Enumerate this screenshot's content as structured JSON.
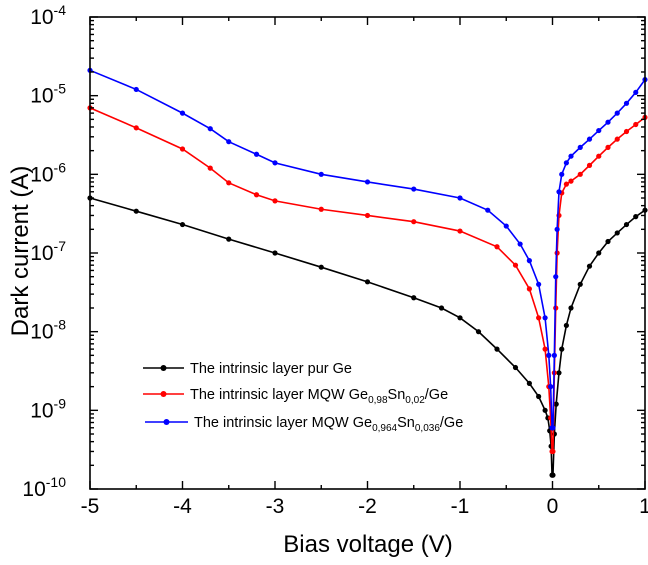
{
  "chart_data": {
    "type": "line",
    "title": "",
    "xlabel": "Bias voltage (V)",
    "ylabel": "Dark current (A)",
    "xlim": [
      -5,
      1
    ],
    "ylim": [
      1e-10,
      0.0001
    ],
    "yscale": "log",
    "grid": false,
    "legend_position": "center-left",
    "x_ticks": [
      "-5",
      "-4",
      "-3",
      "-2",
      "-1",
      "0",
      "1"
    ],
    "y_ticks": [
      {
        "base": "10",
        "exp": "-10"
      },
      {
        "base": "10",
        "exp": "-9"
      },
      {
        "base": "10",
        "exp": "-8"
      },
      {
        "base": "10",
        "exp": "-7"
      },
      {
        "base": "10",
        "exp": "-6"
      },
      {
        "base": "10",
        "exp": "-5"
      },
      {
        "base": "10",
        "exp": "-4"
      }
    ],
    "series": [
      {
        "name": "The intrinsic layer pur Ge",
        "legend_parts": [
          {
            "t": "The intrinsic layer pur Ge",
            "s": ""
          }
        ],
        "color": "#000000",
        "points": [
          [
            -5.0,
            5e-07
          ],
          [
            -4.5,
            3.4e-07
          ],
          [
            -4.0,
            2.3e-07
          ],
          [
            -3.5,
            1.5e-07
          ],
          [
            -3.0,
            1e-07
          ],
          [
            -2.5,
            6.6e-08
          ],
          [
            -2.0,
            4.3e-08
          ],
          [
            -1.5,
            2.7e-08
          ],
          [
            -1.2,
            2e-08
          ],
          [
            -1.0,
            1.5e-08
          ],
          [
            -0.8,
            1e-08
          ],
          [
            -0.6,
            6e-09
          ],
          [
            -0.4,
            3.5e-09
          ],
          [
            -0.25,
            2.2e-09
          ],
          [
            -0.15,
            1.5e-09
          ],
          [
            -0.08,
            1e-09
          ],
          [
            -0.05,
            8e-10
          ],
          [
            -0.03,
            5.5e-10
          ],
          [
            -0.015,
            3.5e-10
          ],
          [
            -0.005,
            1.5e-10
          ],
          [
            0.005,
            1.5e-10
          ],
          [
            0.02,
            5e-10
          ],
          [
            0.04,
            1.2e-09
          ],
          [
            0.07,
            3e-09
          ],
          [
            0.1,
            6e-09
          ],
          [
            0.15,
            1.2e-08
          ],
          [
            0.2,
            2e-08
          ],
          [
            0.3,
            4e-08
          ],
          [
            0.4,
            6.8e-08
          ],
          [
            0.5,
            1e-07
          ],
          [
            0.6,
            1.4e-07
          ],
          [
            0.7,
            1.8e-07
          ],
          [
            0.8,
            2.3e-07
          ],
          [
            0.9,
            2.9e-07
          ],
          [
            1.0,
            3.5e-07
          ]
        ]
      },
      {
        "name": "The intrinsic layer MQW Ge0,98Sn0,02/Ge",
        "legend_parts": [
          {
            "t": "The intrinsic layer MQW Ge",
            "s": ""
          },
          {
            "t": "0,98",
            "s": "sub"
          },
          {
            "t": "Sn",
            "s": ""
          },
          {
            "t": "0,02",
            "s": "sub"
          },
          {
            "t": "/Ge",
            "s": ""
          }
        ],
        "color": "#ff0000",
        "points": [
          [
            -5.0,
            7e-06
          ],
          [
            -4.5,
            3.9e-06
          ],
          [
            -4.0,
            2.1e-06
          ],
          [
            -3.7,
            1.2e-06
          ],
          [
            -3.5,
            7.8e-07
          ],
          [
            -3.2,
            5.5e-07
          ],
          [
            -3.0,
            4.6e-07
          ],
          [
            -2.5,
            3.6e-07
          ],
          [
            -2.0,
            3e-07
          ],
          [
            -1.5,
            2.5e-07
          ],
          [
            -1.0,
            1.9e-07
          ],
          [
            -0.6,
            1.2e-07
          ],
          [
            -0.4,
            7e-08
          ],
          [
            -0.25,
            3.5e-08
          ],
          [
            -0.15,
            1.5e-08
          ],
          [
            -0.08,
            6e-09
          ],
          [
            -0.04,
            2e-09
          ],
          [
            -0.02,
            8e-10
          ],
          [
            -0.005,
            3e-10
          ],
          [
            0.005,
            3e-10
          ],
          [
            0.02,
            3e-09
          ],
          [
            0.035,
            2e-08
          ],
          [
            0.05,
            1e-07
          ],
          [
            0.07,
            3e-07
          ],
          [
            0.1,
            5.8e-07
          ],
          [
            0.15,
            7.5e-07
          ],
          [
            0.2,
            8.2e-07
          ],
          [
            0.3,
            1e-06
          ],
          [
            0.4,
            1.3e-06
          ],
          [
            0.5,
            1.7e-06
          ],
          [
            0.6,
            2.2e-06
          ],
          [
            0.7,
            2.8e-06
          ],
          [
            0.8,
            3.5e-06
          ],
          [
            0.9,
            4.3e-06
          ],
          [
            1.0,
            5.3e-06
          ]
        ]
      },
      {
        "name": "The intrinsic layer MQW Ge0,964Sn0,036/Ge",
        "legend_parts": [
          {
            "t": "The intrinsic layer MQW Ge",
            "s": ""
          },
          {
            "t": "0,964",
            "s": "sub"
          },
          {
            "t": "Sn",
            "s": ""
          },
          {
            "t": "0,036",
            "s": "sub"
          },
          {
            "t": "/Ge",
            "s": ""
          }
        ],
        "color": "#0000ff",
        "points": [
          [
            -5.0,
            2.1e-05
          ],
          [
            -4.5,
            1.2e-05
          ],
          [
            -4.0,
            6e-06
          ],
          [
            -3.7,
            3.8e-06
          ],
          [
            -3.5,
            2.6e-06
          ],
          [
            -3.2,
            1.8e-06
          ],
          [
            -3.0,
            1.4e-06
          ],
          [
            -2.5,
            1e-06
          ],
          [
            -2.0,
            8e-07
          ],
          [
            -1.5,
            6.5e-07
          ],
          [
            -1.0,
            5e-07
          ],
          [
            -0.7,
            3.5e-07
          ],
          [
            -0.5,
            2.2e-07
          ],
          [
            -0.35,
            1.3e-07
          ],
          [
            -0.25,
            8e-08
          ],
          [
            -0.15,
            4e-08
          ],
          [
            -0.08,
            1.5e-08
          ],
          [
            -0.04,
            5e-09
          ],
          [
            -0.02,
            2e-09
          ],
          [
            -0.005,
            6e-10
          ],
          [
            0.005,
            6e-10
          ],
          [
            0.02,
            5e-09
          ],
          [
            0.035,
            5e-08
          ],
          [
            0.05,
            2e-07
          ],
          [
            0.07,
            6e-07
          ],
          [
            0.1,
            1e-06
          ],
          [
            0.15,
            1.4e-06
          ],
          [
            0.2,
            1.7e-06
          ],
          [
            0.3,
            2.2e-06
          ],
          [
            0.4,
            2.8e-06
          ],
          [
            0.5,
            3.6e-06
          ],
          [
            0.6,
            4.6e-06
          ],
          [
            0.7,
            6e-06
          ],
          [
            0.8,
            8e-06
          ],
          [
            0.9,
            1.1e-05
          ],
          [
            1.0,
            1.6e-05
          ]
        ]
      }
    ]
  }
}
